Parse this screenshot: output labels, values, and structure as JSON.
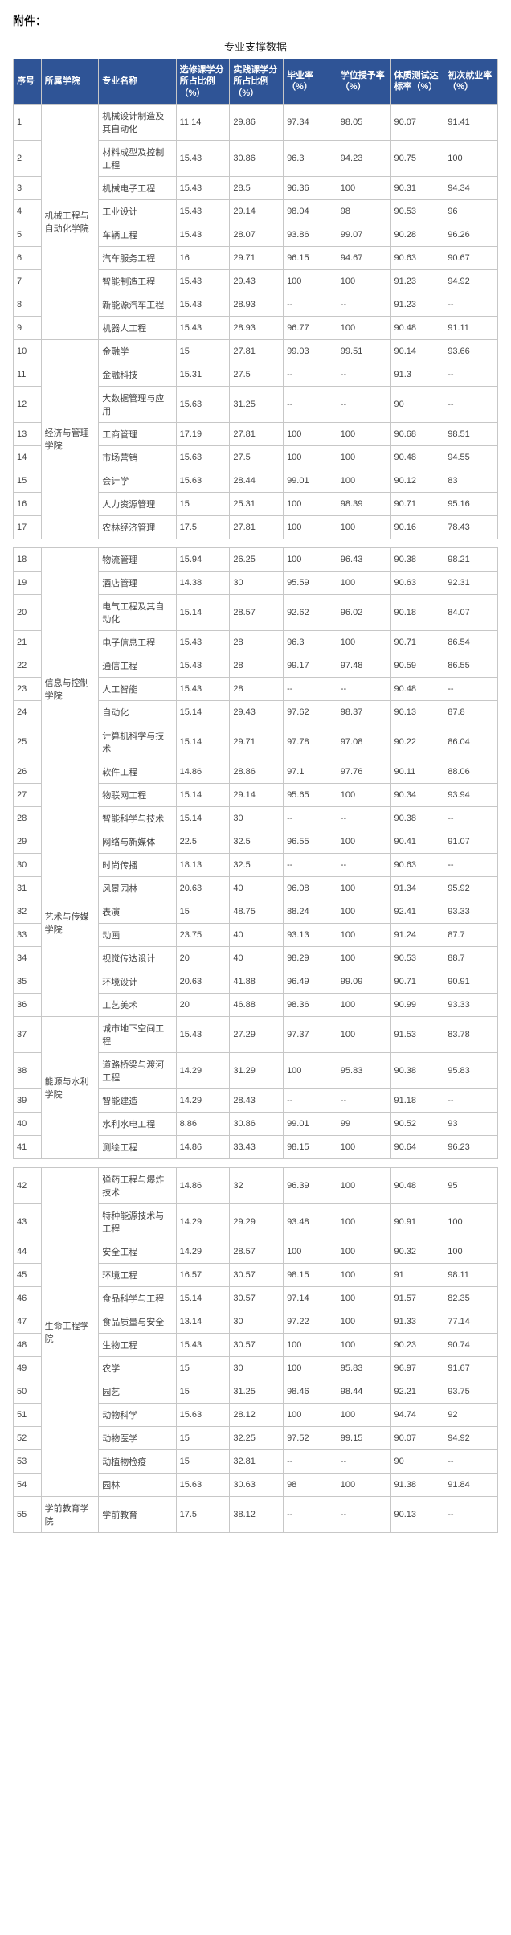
{
  "attachmentLabel": "附件：",
  "tableTitle": "专业支撑数据",
  "headers": {
    "idx": "序号",
    "dept": "所属学院",
    "major": "专业名称",
    "electPct": "选修课学分所占比例（%）",
    "practPct": "实践课学分所占比例（%）",
    "gradRate": "毕业率（%）",
    "degRate": "学位授予率（%）",
    "physRate": "体质测试达标率（%）",
    "empRate": "初次就业率（%）"
  },
  "groups": [
    {
      "gapAfter": false,
      "blocks": [
        {
          "dept": "机械工程与自动化学院",
          "rows": [
            {
              "idx": "1",
              "major": "机械设计制造及其自动化",
              "elect": "11.14",
              "pract": "29.86",
              "grad": "97.34",
              "deg": "98.05",
              "phys": "90.07",
              "emp": "91.41"
            },
            {
              "idx": "2",
              "major": "材料成型及控制工程",
              "elect": "15.43",
              "pract": "30.86",
              "grad": "96.3",
              "deg": "94.23",
              "phys": "90.75",
              "emp": "100"
            },
            {
              "idx": "3",
              "major": "机械电子工程",
              "elect": "15.43",
              "pract": "28.5",
              "grad": "96.36",
              "deg": "100",
              "phys": "90.31",
              "emp": "94.34"
            },
            {
              "idx": "4",
              "major": "工业设计",
              "elect": "15.43",
              "pract": "29.14",
              "grad": "98.04",
              "deg": "98",
              "phys": "90.53",
              "emp": "96"
            },
            {
              "idx": "5",
              "major": "车辆工程",
              "elect": "15.43",
              "pract": "28.07",
              "grad": "93.86",
              "deg": "99.07",
              "phys": "90.28",
              "emp": "96.26"
            },
            {
              "idx": "6",
              "major": "汽车服务工程",
              "elect": "16",
              "pract": "29.71",
              "grad": "96.15",
              "deg": "94.67",
              "phys": "90.63",
              "emp": "90.67"
            },
            {
              "idx": "7",
              "major": "智能制造工程",
              "elect": "15.43",
              "pract": "29.43",
              "grad": "100",
              "deg": "100",
              "phys": "91.23",
              "emp": "94.92"
            },
            {
              "idx": "8",
              "major": "新能源汽车工程",
              "elect": "15.43",
              "pract": "28.93",
              "grad": "--",
              "deg": "--",
              "phys": "91.23",
              "emp": "--"
            },
            {
              "idx": "9",
              "major": "机器人工程",
              "elect": "15.43",
              "pract": "28.93",
              "grad": "96.77",
              "deg": "100",
              "phys": "90.48",
              "emp": "91.11"
            }
          ]
        },
        {
          "dept": "经济与管理学院",
          "rows": [
            {
              "idx": "10",
              "major": "金融学",
              "elect": "15",
              "pract": "27.81",
              "grad": "99.03",
              "deg": "99.51",
              "phys": "90.14",
              "emp": "93.66"
            },
            {
              "idx": "11",
              "major": "金融科技",
              "elect": "15.31",
              "pract": "27.5",
              "grad": "--",
              "deg": "--",
              "phys": "91.3",
              "emp": "--"
            },
            {
              "idx": "12",
              "major": "大数据管理与应用",
              "elect": "15.63",
              "pract": "31.25",
              "grad": "--",
              "deg": "--",
              "phys": "90",
              "emp": "--"
            },
            {
              "idx": "13",
              "major": "工商管理",
              "elect": "17.19",
              "pract": "27.81",
              "grad": "100",
              "deg": "100",
              "phys": "90.68",
              "emp": "98.51"
            },
            {
              "idx": "14",
              "major": "市场营销",
              "elect": "15.63",
              "pract": "27.5",
              "grad": "100",
              "deg": "100",
              "phys": "90.48",
              "emp": "94.55"
            },
            {
              "idx": "15",
              "major": "会计学",
              "elect": "15.63",
              "pract": "28.44",
              "grad": "99.01",
              "deg": "100",
              "phys": "90.12",
              "emp": "83"
            },
            {
              "idx": "16",
              "major": "人力资源管理",
              "elect": "15",
              "pract": "25.31",
              "grad": "100",
              "deg": "98.39",
              "phys": "90.71",
              "emp": "95.16"
            },
            {
              "idx": "17",
              "major": "农林经济管理",
              "elect": "17.5",
              "pract": "27.81",
              "grad": "100",
              "deg": "100",
              "phys": "90.16",
              "emp": "78.43"
            }
          ]
        }
      ]
    },
    {
      "gapAfter": false,
      "blocks": [
        {
          "dept": "信息与控制学院",
          "rows": [
            {
              "idx": "18",
              "major": "物流管理",
              "elect": "15.94",
              "pract": "26.25",
              "grad": "100",
              "deg": "96.43",
              "phys": "90.38",
              "emp": "98.21"
            },
            {
              "idx": "19",
              "major": "酒店管理",
              "elect": "14.38",
              "pract": "30",
              "grad": "95.59",
              "deg": "100",
              "phys": "90.63",
              "emp": "92.31"
            },
            {
              "idx": "20",
              "major": "电气工程及其自动化",
              "elect": "15.14",
              "pract": "28.57",
              "grad": "92.62",
              "deg": "96.02",
              "phys": "90.18",
              "emp": "84.07"
            },
            {
              "idx": "21",
              "major": "电子信息工程",
              "elect": "15.43",
              "pract": "28",
              "grad": "96.3",
              "deg": "100",
              "phys": "90.71",
              "emp": "86.54"
            },
            {
              "idx": "22",
              "major": "通信工程",
              "elect": "15.43",
              "pract": "28",
              "grad": "99.17",
              "deg": "97.48",
              "phys": "90.59",
              "emp": "86.55"
            },
            {
              "idx": "23",
              "major": "人工智能",
              "elect": "15.43",
              "pract": "28",
              "grad": "--",
              "deg": "--",
              "phys": "90.48",
              "emp": "--"
            },
            {
              "idx": "24",
              "major": "自动化",
              "elect": "15.14",
              "pract": "29.43",
              "grad": "97.62",
              "deg": "98.37",
              "phys": "90.13",
              "emp": "87.8"
            },
            {
              "idx": "25",
              "major": "计算机科学与技术",
              "elect": "15.14",
              "pract": "29.71",
              "grad": "97.78",
              "deg": "97.08",
              "phys": "90.22",
              "emp": "86.04"
            },
            {
              "idx": "26",
              "major": "软件工程",
              "elect": "14.86",
              "pract": "28.86",
              "grad": "97.1",
              "deg": "97.76",
              "phys": "90.11",
              "emp": "88.06"
            },
            {
              "idx": "27",
              "major": "物联网工程",
              "elect": "15.14",
              "pract": "29.14",
              "grad": "95.65",
              "deg": "100",
              "phys": "90.34",
              "emp": "93.94"
            },
            {
              "idx": "28",
              "major": "智能科学与技术",
              "elect": "15.14",
              "pract": "30",
              "grad": "--",
              "deg": "--",
              "phys": "90.38",
              "emp": "--"
            }
          ]
        },
        {
          "dept": "艺术与传媒学院",
          "rows": [
            {
              "idx": "29",
              "major": "网络与新媒体",
              "elect": "22.5",
              "pract": "32.5",
              "grad": "96.55",
              "deg": "100",
              "phys": "90.41",
              "emp": "91.07"
            },
            {
              "idx": "30",
              "major": "时尚传播",
              "elect": "18.13",
              "pract": "32.5",
              "grad": "--",
              "deg": "--",
              "phys": "90.63",
              "emp": "--"
            },
            {
              "idx": "31",
              "major": "风景园林",
              "elect": "20.63",
              "pract": "40",
              "grad": "96.08",
              "deg": "100",
              "phys": "91.34",
              "emp": "95.92"
            },
            {
              "idx": "32",
              "major": "表演",
              "elect": "15",
              "pract": "48.75",
              "grad": "88.24",
              "deg": "100",
              "phys": "92.41",
              "emp": "93.33"
            },
            {
              "idx": "33",
              "major": "动画",
              "elect": "23.75",
              "pract": "40",
              "grad": "93.13",
              "deg": "100",
              "phys": "91.24",
              "emp": "87.7"
            },
            {
              "idx": "34",
              "major": "视觉传达设计",
              "elect": "20",
              "pract": "40",
              "grad": "98.29",
              "deg": "100",
              "phys": "90.53",
              "emp": "88.7"
            },
            {
              "idx": "35",
              "major": "环境设计",
              "elect": "20.63",
              "pract": "41.88",
              "grad": "96.49",
              "deg": "99.09",
              "phys": "90.71",
              "emp": "90.91"
            },
            {
              "idx": "36",
              "major": "工艺美术",
              "elect": "20",
              "pract": "46.88",
              "grad": "98.36",
              "deg": "100",
              "phys": "90.99",
              "emp": "93.33"
            }
          ]
        },
        {
          "dept": "能源与水利学院",
          "rows": [
            {
              "idx": "37",
              "major": "城市地下空间工程",
              "elect": "15.43",
              "pract": "27.29",
              "grad": "97.37",
              "deg": "100",
              "phys": "91.53",
              "emp": "83.78"
            },
            {
              "idx": "38",
              "major": "道路桥梁与渡河工程",
              "elect": "14.29",
              "pract": "31.29",
              "grad": "100",
              "deg": "95.83",
              "phys": "90.38",
              "emp": "95.83"
            },
            {
              "idx": "39",
              "major": "智能建造",
              "elect": "14.29",
              "pract": "28.43",
              "grad": "--",
              "deg": "--",
              "phys": "91.18",
              "emp": "--"
            },
            {
              "idx": "40",
              "major": "水利水电工程",
              "elect": "8.86",
              "pract": "30.86",
              "grad": "99.01",
              "deg": "99",
              "phys": "90.52",
              "emp": "93"
            },
            {
              "idx": "41",
              "major": "测绘工程",
              "elect": "14.86",
              "pract": "33.43",
              "grad": "98.15",
              "deg": "100",
              "phys": "90.64",
              "emp": "96.23"
            }
          ]
        }
      ]
    },
    {
      "gapAfter": false,
      "blocks": [
        {
          "dept": "生命工程学院",
          "rows": [
            {
              "idx": "42",
              "major": "弹药工程与爆炸技术",
              "elect": "14.86",
              "pract": "32",
              "grad": "96.39",
              "deg": "100",
              "phys": "90.48",
              "emp": "95"
            },
            {
              "idx": "43",
              "major": "特种能源技术与工程",
              "elect": "14.29",
              "pract": "29.29",
              "grad": "93.48",
              "deg": "100",
              "phys": "90.91",
              "emp": "100"
            },
            {
              "idx": "44",
              "major": "安全工程",
              "elect": "14.29",
              "pract": "28.57",
              "grad": "100",
              "deg": "100",
              "phys": "90.32",
              "emp": "100"
            },
            {
              "idx": "45",
              "major": "环境工程",
              "elect": "16.57",
              "pract": "30.57",
              "grad": "98.15",
              "deg": "100",
              "phys": "91",
              "emp": "98.11"
            },
            {
              "idx": "46",
              "major": "食品科学与工程",
              "elect": "15.14",
              "pract": "30.57",
              "grad": "97.14",
              "deg": "100",
              "phys": "91.57",
              "emp": "82.35"
            },
            {
              "idx": "47",
              "major": "食品质量与安全",
              "elect": "13.14",
              "pract": "30",
              "grad": "97.22",
              "deg": "100",
              "phys": "91.33",
              "emp": "77.14"
            },
            {
              "idx": "48",
              "major": "生物工程",
              "elect": "15.43",
              "pract": "30.57",
              "grad": "100",
              "deg": "100",
              "phys": "90.23",
              "emp": "90.74"
            },
            {
              "idx": "49",
              "major": "农学",
              "elect": "15",
              "pract": "30",
              "grad": "100",
              "deg": "95.83",
              "phys": "96.97",
              "emp": "91.67"
            },
            {
              "idx": "50",
              "major": "园艺",
              "elect": "15",
              "pract": "31.25",
              "grad": "98.46",
              "deg": "98.44",
              "phys": "92.21",
              "emp": "93.75"
            },
            {
              "idx": "51",
              "major": "动物科学",
              "elect": "15.63",
              "pract": "28.12",
              "grad": "100",
              "deg": "100",
              "phys": "94.74",
              "emp": "92"
            },
            {
              "idx": "52",
              "major": "动物医学",
              "elect": "15",
              "pract": "32.25",
              "grad": "97.52",
              "deg": "99.15",
              "phys": "90.07",
              "emp": "94.92"
            },
            {
              "idx": "53",
              "major": "动植物检疫",
              "elect": "15",
              "pract": "32.81",
              "grad": "--",
              "deg": "--",
              "phys": "90",
              "emp": "--"
            },
            {
              "idx": "54",
              "major": "园林",
              "elect": "15.63",
              "pract": "30.63",
              "grad": "98",
              "deg": "100",
              "phys": "91.38",
              "emp": "91.84"
            }
          ]
        },
        {
          "dept": "学前教育学院",
          "rows": [
            {
              "idx": "55",
              "major": "学前教育",
              "elect": "17.5",
              "pract": "38.12",
              "grad": "--",
              "deg": "--",
              "phys": "90.13",
              "emp": "--"
            }
          ]
        }
      ]
    }
  ]
}
